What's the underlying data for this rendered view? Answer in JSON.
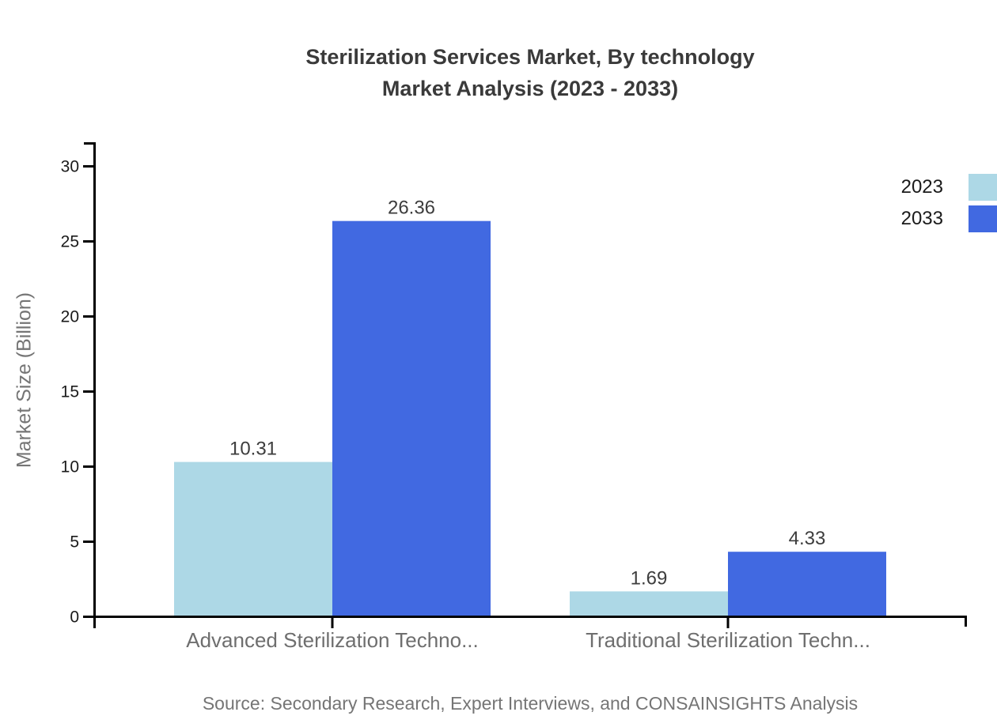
{
  "title": {
    "line1": "Sterilization Services Market, By technology",
    "line2": "Market Analysis (2023 - 2033)"
  },
  "chart_data": {
    "type": "bar",
    "categories": [
      "Advanced Sterilization Techno...",
      "Traditional Sterilization Techn..."
    ],
    "series": [
      {
        "name": "2023",
        "color": "#add8e6",
        "values": [
          10.31,
          1.69
        ]
      },
      {
        "name": "2033",
        "color": "#4169e1",
        "values": [
          26.36,
          4.33
        ]
      }
    ],
    "value_labels": [
      "10.31",
      "26.36",
      "1.69",
      "4.33"
    ],
    "xlabel": "",
    "ylabel": "Market Size (Billion)",
    "ylim": [
      0,
      30
    ],
    "yticks": [
      0,
      5,
      10,
      15,
      20,
      25,
      30
    ],
    "grid": false,
    "legend_position": "top-right",
    "axis_color": "#000000",
    "tick_label_color": "#1a1a1a",
    "category_label_color": "#6e6e6e",
    "value_label_color": "#3d3d3d"
  },
  "source": "Source: Secondary Research, Expert Interviews, and CONSAINSIGHTS Analysis"
}
